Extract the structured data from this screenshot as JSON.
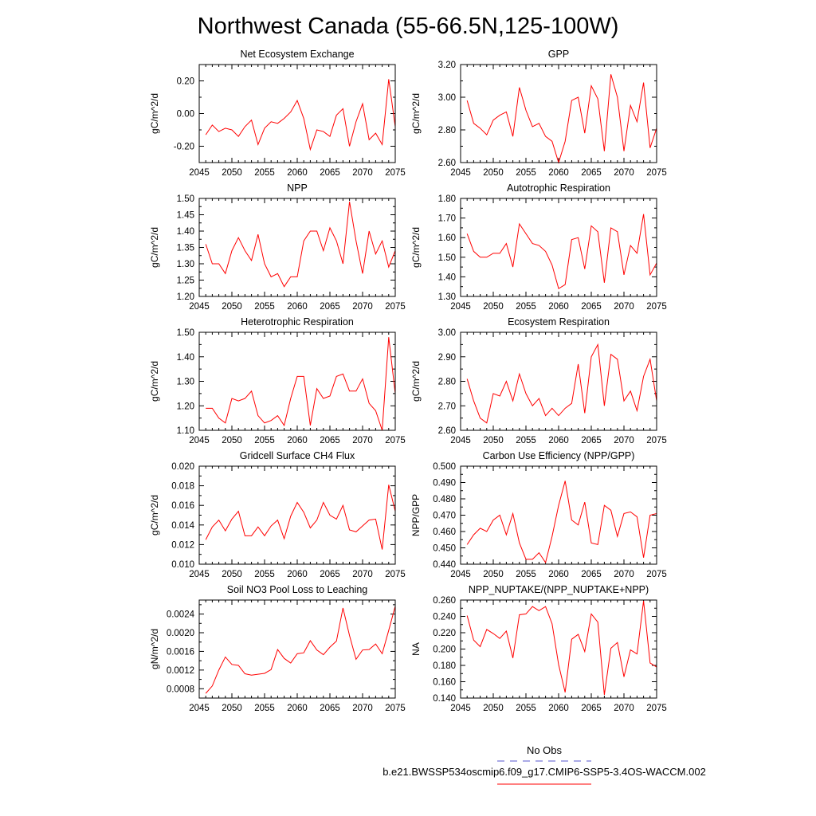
{
  "title": "Northwest Canada (55-66.5N,125-100W)",
  "legend": {
    "position": "bottom-right",
    "entries": [
      {
        "label": "No Obs",
        "color": "#5555cc",
        "dash": true
      },
      {
        "label": "b.e21.BWSSP534oscmip6.f09_g17.CMIP6-SSP5-3.4OS-WACCM.002",
        "color": "#ff0000",
        "dash": false
      }
    ]
  },
  "chart_data": [
    {
      "type": "line",
      "title": "Net Ecosystem Exchange",
      "ylabel": "gC/m^2/d",
      "xlim": [
        2045,
        2075
      ],
      "ylim": [
        -0.3,
        0.3
      ],
      "xticks": [
        2045,
        2050,
        2055,
        2060,
        2065,
        2070,
        2075
      ],
      "yticks": [
        -0.2,
        0.0,
        0.2
      ],
      "ytick_labels": [
        "-0.20",
        "0.00",
        "0.20"
      ],
      "x": [
        2046,
        2047,
        2048,
        2049,
        2050,
        2051,
        2052,
        2053,
        2054,
        2055,
        2056,
        2057,
        2058,
        2059,
        2060,
        2061,
        2062,
        2063,
        2064,
        2065,
        2066,
        2067,
        2068,
        2069,
        2070,
        2071,
        2072,
        2073,
        2074,
        2075
      ],
      "series": [
        {
          "color": "#ff0000",
          "values": [
            -0.13,
            -0.07,
            -0.11,
            -0.09,
            -0.1,
            -0.14,
            -0.08,
            -0.04,
            -0.19,
            -0.09,
            -0.05,
            -0.06,
            -0.03,
            0.01,
            0.08,
            -0.03,
            -0.22,
            -0.1,
            -0.11,
            -0.14,
            -0.01,
            0.03,
            -0.2,
            -0.05,
            0.06,
            -0.16,
            -0.12,
            -0.19,
            0.21,
            -0.08
          ]
        }
      ]
    },
    {
      "type": "line",
      "title": "GPP",
      "ylabel": "gC/m^2/d",
      "xlim": [
        2045,
        2075
      ],
      "ylim": [
        2.6,
        3.2
      ],
      "xticks": [
        2045,
        2050,
        2055,
        2060,
        2065,
        2070,
        2075
      ],
      "yticks": [
        2.6,
        2.8,
        3.0,
        3.2
      ],
      "ytick_labels": [
        "2.60",
        "2.80",
        "3.00",
        "3.20"
      ],
      "x": [
        2046,
        2047,
        2048,
        2049,
        2050,
        2051,
        2052,
        2053,
        2054,
        2055,
        2056,
        2057,
        2058,
        2059,
        2060,
        2061,
        2062,
        2063,
        2064,
        2065,
        2066,
        2067,
        2068,
        2069,
        2070,
        2071,
        2072,
        2073,
        2074,
        2075
      ],
      "series": [
        {
          "color": "#ff0000",
          "values": [
            2.98,
            2.84,
            2.81,
            2.77,
            2.86,
            2.89,
            2.91,
            2.76,
            3.06,
            2.92,
            2.82,
            2.84,
            2.76,
            2.73,
            2.6,
            2.73,
            2.98,
            3.0,
            2.78,
            3.07,
            2.99,
            2.67,
            3.14,
            3.0,
            2.67,
            2.95,
            2.85,
            3.09,
            2.69,
            2.81
          ]
        }
      ]
    },
    {
      "type": "line",
      "title": "NPP",
      "ylabel": "gC/m^2/d",
      "xlim": [
        2045,
        2075
      ],
      "ylim": [
        1.2,
        1.5
      ],
      "xticks": [
        2045,
        2050,
        2055,
        2060,
        2065,
        2070,
        2075
      ],
      "yticks": [
        1.2,
        1.25,
        1.3,
        1.35,
        1.4,
        1.45,
        1.5
      ],
      "ytick_labels": [
        "1.20",
        "1.25",
        "1.30",
        "1.35",
        "1.40",
        "1.45",
        "1.50"
      ],
      "x": [
        2046,
        2047,
        2048,
        2049,
        2050,
        2051,
        2052,
        2053,
        2054,
        2055,
        2056,
        2057,
        2058,
        2059,
        2060,
        2061,
        2062,
        2063,
        2064,
        2065,
        2066,
        2067,
        2068,
        2069,
        2070,
        2071,
        2072,
        2073,
        2074,
        2075
      ],
      "series": [
        {
          "color": "#ff0000",
          "values": [
            1.36,
            1.3,
            1.3,
            1.27,
            1.34,
            1.38,
            1.34,
            1.31,
            1.39,
            1.3,
            1.26,
            1.27,
            1.23,
            1.26,
            1.26,
            1.37,
            1.4,
            1.4,
            1.34,
            1.41,
            1.37,
            1.3,
            1.49,
            1.37,
            1.27,
            1.4,
            1.33,
            1.37,
            1.29,
            1.34
          ]
        }
      ]
    },
    {
      "type": "line",
      "title": "Autotrophic Respiration",
      "ylabel": "gC/m^2/d",
      "xlim": [
        2045,
        2075
      ],
      "ylim": [
        1.3,
        1.8
      ],
      "xticks": [
        2045,
        2050,
        2055,
        2060,
        2065,
        2070,
        2075
      ],
      "yticks": [
        1.3,
        1.4,
        1.5,
        1.6,
        1.7,
        1.8
      ],
      "ytick_labels": [
        "1.30",
        "1.40",
        "1.50",
        "1.60",
        "1.70",
        "1.80"
      ],
      "x": [
        2046,
        2047,
        2048,
        2049,
        2050,
        2051,
        2052,
        2053,
        2054,
        2055,
        2056,
        2057,
        2058,
        2059,
        2060,
        2061,
        2062,
        2063,
        2064,
        2065,
        2066,
        2067,
        2068,
        2069,
        2070,
        2071,
        2072,
        2073,
        2074,
        2075
      ],
      "series": [
        {
          "color": "#ff0000",
          "values": [
            1.62,
            1.53,
            1.5,
            1.5,
            1.52,
            1.52,
            1.57,
            1.45,
            1.67,
            1.62,
            1.57,
            1.56,
            1.53,
            1.46,
            1.34,
            1.36,
            1.59,
            1.6,
            1.44,
            1.66,
            1.63,
            1.37,
            1.65,
            1.63,
            1.41,
            1.56,
            1.52,
            1.72,
            1.41,
            1.47
          ]
        }
      ]
    },
    {
      "type": "line",
      "title": "Heterotrophic Respiration",
      "ylabel": "gC/m^2/d",
      "xlim": [
        2045,
        2075
      ],
      "ylim": [
        1.1,
        1.5
      ],
      "xticks": [
        2045,
        2050,
        2055,
        2060,
        2065,
        2070,
        2075
      ],
      "yticks": [
        1.1,
        1.2,
        1.3,
        1.4,
        1.5
      ],
      "ytick_labels": [
        "1.10",
        "1.20",
        "1.30",
        "1.40",
        "1.50"
      ],
      "x": [
        2046,
        2047,
        2048,
        2049,
        2050,
        2051,
        2052,
        2053,
        2054,
        2055,
        2056,
        2057,
        2058,
        2059,
        2060,
        2061,
        2062,
        2063,
        2064,
        2065,
        2066,
        2067,
        2068,
        2069,
        2070,
        2071,
        2072,
        2073,
        2074,
        2075
      ],
      "series": [
        {
          "color": "#ff0000",
          "values": [
            1.19,
            1.19,
            1.15,
            1.13,
            1.23,
            1.22,
            1.23,
            1.26,
            1.16,
            1.13,
            1.14,
            1.16,
            1.12,
            1.23,
            1.32,
            1.32,
            1.12,
            1.27,
            1.23,
            1.24,
            1.32,
            1.33,
            1.26,
            1.26,
            1.31,
            1.21,
            1.18,
            1.1,
            1.48,
            1.25
          ]
        }
      ]
    },
    {
      "type": "line",
      "title": "Ecosystem Respiration",
      "ylabel": "gC/m^2/d",
      "xlim": [
        2045,
        2075
      ],
      "ylim": [
        2.6,
        3.0
      ],
      "xticks": [
        2045,
        2050,
        2055,
        2060,
        2065,
        2070,
        2075
      ],
      "yticks": [
        2.6,
        2.7,
        2.8,
        2.9,
        3.0
      ],
      "ytick_labels": [
        "2.60",
        "2.70",
        "2.80",
        "2.90",
        "3.00"
      ],
      "x": [
        2046,
        2047,
        2048,
        2049,
        2050,
        2051,
        2052,
        2053,
        2054,
        2055,
        2056,
        2057,
        2058,
        2059,
        2060,
        2061,
        2062,
        2063,
        2064,
        2065,
        2066,
        2067,
        2068,
        2069,
        2070,
        2071,
        2072,
        2073,
        2074,
        2075
      ],
      "series": [
        {
          "color": "#ff0000",
          "values": [
            2.81,
            2.72,
            2.65,
            2.63,
            2.75,
            2.74,
            2.8,
            2.72,
            2.83,
            2.75,
            2.7,
            2.73,
            2.66,
            2.69,
            2.66,
            2.69,
            2.71,
            2.87,
            2.67,
            2.9,
            2.95,
            2.7,
            2.91,
            2.89,
            2.72,
            2.76,
            2.68,
            2.82,
            2.89,
            2.72
          ]
        }
      ]
    },
    {
      "type": "line",
      "title": "Gridcell Surface CH4 Flux",
      "ylabel": "gC/m^2/d",
      "xlim": [
        2045,
        2075
      ],
      "ylim": [
        0.01,
        0.02
      ],
      "xticks": [
        2045,
        2050,
        2055,
        2060,
        2065,
        2070,
        2075
      ],
      "yticks": [
        0.01,
        0.012,
        0.014,
        0.016,
        0.018,
        0.02
      ],
      "ytick_labels": [
        "0.010",
        "0.012",
        "0.014",
        "0.016",
        "0.018",
        "0.020"
      ],
      "x": [
        2046,
        2047,
        2048,
        2049,
        2050,
        2051,
        2052,
        2053,
        2054,
        2055,
        2056,
        2057,
        2058,
        2059,
        2060,
        2061,
        2062,
        2063,
        2064,
        2065,
        2066,
        2067,
        2068,
        2069,
        2070,
        2071,
        2072,
        2073,
        2074,
        2075
      ],
      "series": [
        {
          "color": "#ff0000",
          "values": [
            0.0125,
            0.0138,
            0.0145,
            0.0134,
            0.0146,
            0.0154,
            0.0129,
            0.0129,
            0.0138,
            0.0129,
            0.0139,
            0.0145,
            0.0126,
            0.0149,
            0.0163,
            0.0153,
            0.0137,
            0.0145,
            0.0163,
            0.015,
            0.0146,
            0.016,
            0.0135,
            0.0133,
            0.0139,
            0.0145,
            0.0146,
            0.0115,
            0.0181,
            0.0154
          ]
        }
      ]
    },
    {
      "type": "line",
      "title": "Carbon Use Efficiency (NPP/GPP)",
      "ylabel": "NPP/GPP",
      "xlim": [
        2045,
        2075
      ],
      "ylim": [
        0.44,
        0.5
      ],
      "xticks": [
        2045,
        2050,
        2055,
        2060,
        2065,
        2070,
        2075
      ],
      "yticks": [
        0.44,
        0.45,
        0.46,
        0.47,
        0.48,
        0.49,
        0.5
      ],
      "ytick_labels": [
        "0.440",
        "0.450",
        "0.460",
        "0.470",
        "0.480",
        "0.490",
        "0.500"
      ],
      "x": [
        2046,
        2047,
        2048,
        2049,
        2050,
        2051,
        2052,
        2053,
        2054,
        2055,
        2056,
        2057,
        2058,
        2059,
        2060,
        2061,
        2062,
        2063,
        2064,
        2065,
        2066,
        2067,
        2068,
        2069,
        2070,
        2071,
        2072,
        2073,
        2074,
        2075
      ],
      "series": [
        {
          "color": "#ff0000",
          "values": [
            0.452,
            0.458,
            0.462,
            0.46,
            0.467,
            0.47,
            0.458,
            0.471,
            0.453,
            0.443,
            0.443,
            0.447,
            0.441,
            0.457,
            0.476,
            0.491,
            0.467,
            0.464,
            0.478,
            0.453,
            0.452,
            0.476,
            0.473,
            0.457,
            0.471,
            0.472,
            0.469,
            0.444,
            0.47,
            0.471
          ]
        }
      ]
    },
    {
      "type": "line",
      "title": "Soil NO3 Pool Loss to Leaching",
      "ylabel": "gN/m^2/d",
      "xlim": [
        2045,
        2075
      ],
      "ylim": [
        0.0006,
        0.0027
      ],
      "xticks": [
        2045,
        2050,
        2055,
        2060,
        2065,
        2070,
        2075
      ],
      "yticks": [
        0.0008,
        0.0012,
        0.0016,
        0.002,
        0.0024
      ],
      "ytick_labels": [
        "0.0008",
        "0.0012",
        "0.0016",
        "0.0020",
        "0.0024"
      ],
      "x": [
        2046,
        2047,
        2048,
        2049,
        2050,
        2051,
        2052,
        2053,
        2054,
        2055,
        2056,
        2057,
        2058,
        2059,
        2060,
        2061,
        2062,
        2063,
        2064,
        2065,
        2066,
        2067,
        2068,
        2069,
        2070,
        2071,
        2072,
        2073,
        2074,
        2075
      ],
      "series": [
        {
          "color": "#ff0000",
          "values": [
            0.0007,
            0.00086,
            0.0012,
            0.00148,
            0.00132,
            0.0013,
            0.00112,
            0.00109,
            0.00111,
            0.00113,
            0.00121,
            0.00164,
            0.00145,
            0.00135,
            0.00155,
            0.00157,
            0.00183,
            0.00163,
            0.00153,
            0.00169,
            0.00182,
            0.00253,
            0.00194,
            0.00143,
            0.00163,
            0.00164,
            0.00176,
            0.00155,
            0.00205,
            0.00257
          ]
        }
      ]
    },
    {
      "type": "line",
      "title": "NPP_NUPTAKE/(NPP_NUPTAKE+NPP)",
      "ylabel": "NA",
      "xlim": [
        2045,
        2075
      ],
      "ylim": [
        0.14,
        0.26
      ],
      "xticks": [
        2045,
        2050,
        2055,
        2060,
        2065,
        2070,
        2075
      ],
      "yticks": [
        0.14,
        0.16,
        0.18,
        0.2,
        0.22,
        0.24,
        0.26
      ],
      "ytick_labels": [
        "0.140",
        "0.160",
        "0.180",
        "0.200",
        "0.220",
        "0.240",
        "0.260"
      ],
      "x": [
        2046,
        2047,
        2048,
        2049,
        2050,
        2051,
        2052,
        2053,
        2054,
        2055,
        2056,
        2057,
        2058,
        2059,
        2060,
        2061,
        2062,
        2063,
        2064,
        2065,
        2066,
        2067,
        2068,
        2069,
        2070,
        2071,
        2072,
        2073,
        2074,
        2075
      ],
      "series": [
        {
          "color": "#ff0000",
          "values": [
            0.241,
            0.211,
            0.203,
            0.224,
            0.219,
            0.213,
            0.222,
            0.189,
            0.242,
            0.243,
            0.252,
            0.247,
            0.252,
            0.231,
            0.181,
            0.147,
            0.212,
            0.218,
            0.197,
            0.243,
            0.233,
            0.144,
            0.201,
            0.208,
            0.166,
            0.199,
            0.194,
            0.259,
            0.183,
            0.178
          ]
        }
      ]
    }
  ]
}
